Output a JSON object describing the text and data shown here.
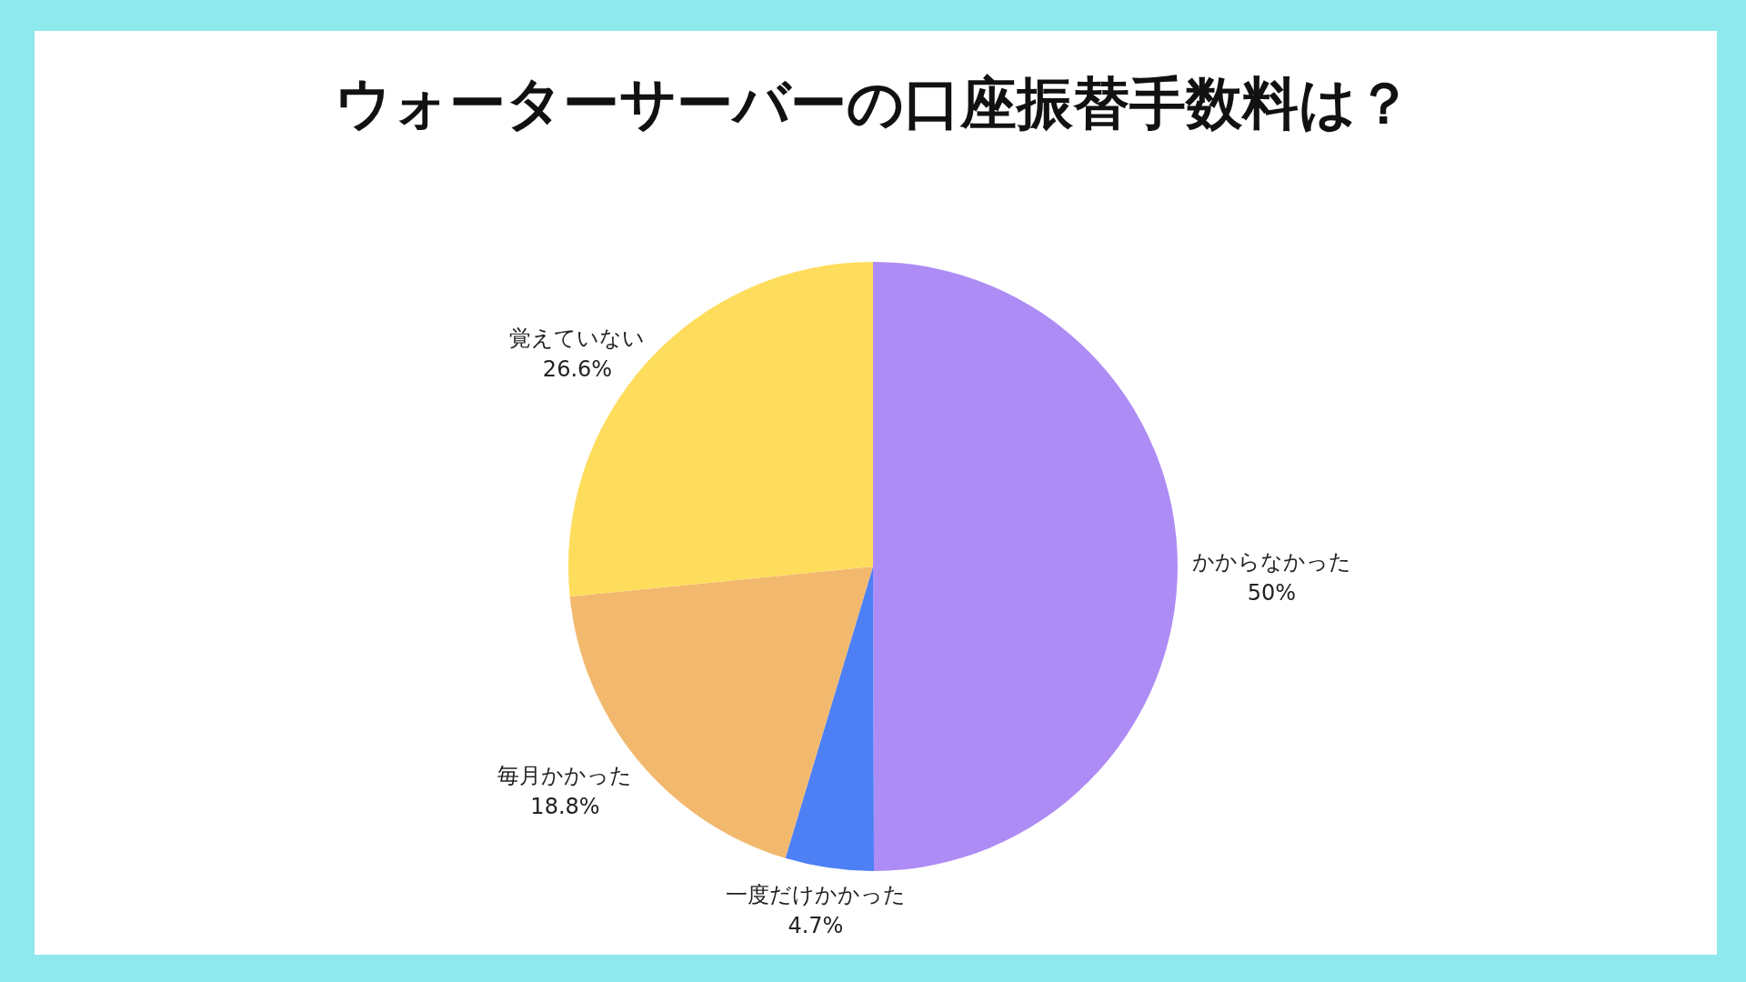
{
  "chart_data": {
    "type": "pie",
    "title": "ウォーターサーバーの口座振替手数料は？",
    "categories": [
      "かからなかった",
      "一度だけかかった",
      "毎月かかった",
      "覚えていない"
    ],
    "values": [
      50,
      4.7,
      18.8,
      26.6
    ],
    "colors": [
      "#ae8cf5",
      "#4d80f5",
      "#f2b96e",
      "#ffdd5c"
    ],
    "value_labels": [
      "50%",
      "4.7%",
      "18.8%",
      "26.6%"
    ]
  }
}
